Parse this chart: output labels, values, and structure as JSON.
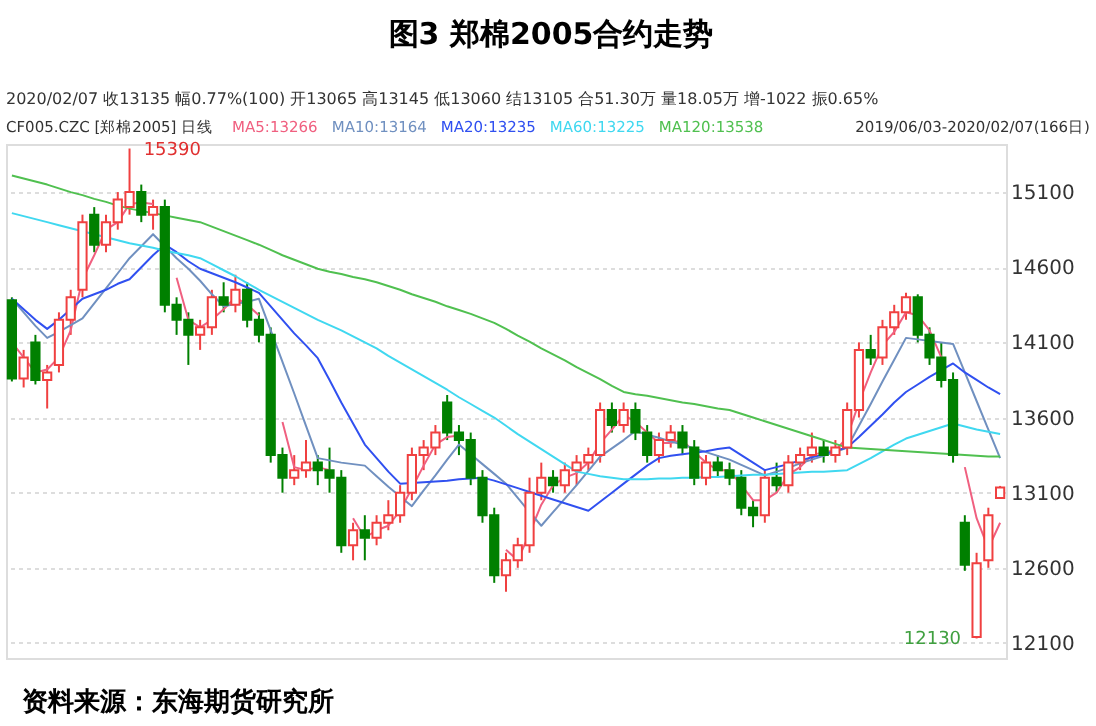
{
  "chart_data": {
    "type": "candlestick",
    "title": "图3  郑棉2005合约走势",
    "categories": [
      null,
      null,
      null,
      null,
      null,
      null,
      null,
      null,
      null,
      null,
      null,
      null,
      null,
      null,
      null,
      null,
      null,
      null,
      null,
      null,
      null,
      null,
      null,
      null,
      null,
      null,
      null,
      null,
      null,
      null,
      null,
      null,
      null,
      null,
      null,
      null,
      null,
      null,
      null,
      null,
      null,
      null,
      null,
      null,
      null,
      null,
      null,
      null,
      null,
      null,
      null,
      null,
      null,
      null,
      null,
      null,
      null,
      null,
      null,
      null,
      null,
      null,
      null,
      null,
      null,
      null,
      null,
      null,
      null,
      null,
      null,
      null,
      null,
      null,
      null,
      null,
      null,
      null,
      null,
      null,
      null,
      null,
      null,
      null,
      null
    ],
    "ohlc": [
      [
        14380,
        14400,
        13840,
        13860
      ],
      [
        13860,
        14050,
        13800,
        14000
      ],
      [
        14100,
        14150,
        13820,
        13850
      ],
      [
        13850,
        13950,
        13660,
        13900
      ],
      [
        13950,
        14300,
        13900,
        14250
      ],
      [
        14250,
        14450,
        14150,
        14400
      ],
      [
        14450,
        14950,
        14400,
        14900
      ],
      [
        14950,
        15000,
        14700,
        14750
      ],
      [
        14750,
        14950,
        14700,
        14900
      ],
      [
        14900,
        15100,
        14850,
        15050
      ],
      [
        15000,
        15390,
        14950,
        15100
      ],
      [
        15100,
        15150,
        14900,
        14950
      ],
      [
        14950,
        15050,
        14850,
        15000
      ],
      [
        15000,
        15050,
        14300,
        14350
      ],
      [
        14350,
        14400,
        14150,
        14250
      ],
      [
        14250,
        14300,
        13950,
        14150
      ],
      [
        14150,
        14250,
        14050,
        14200
      ],
      [
        14200,
        14450,
        14150,
        14400
      ],
      [
        14400,
        14500,
        14300,
        14350
      ],
      [
        14350,
        14550,
        14300,
        14450
      ],
      [
        14450,
        14500,
        14200,
        14250
      ],
      [
        14250,
        14300,
        14100,
        14150
      ],
      [
        14150,
        14200,
        13300,
        13350
      ],
      [
        13350,
        13400,
        13100,
        13200
      ],
      [
        13200,
        13350,
        13150,
        13250
      ],
      [
        13250,
        13450,
        13200,
        13300
      ],
      [
        13300,
        13350,
        13150,
        13250
      ],
      [
        13250,
        13400,
        13100,
        13200
      ],
      [
        13200,
        13250,
        12700,
        12750
      ],
      [
        12750,
        12900,
        12650,
        12850
      ],
      [
        12850,
        12950,
        12650,
        12800
      ],
      [
        12800,
        12950,
        12750,
        12900
      ],
      [
        12900,
        13050,
        12850,
        12950
      ],
      [
        12950,
        13150,
        12900,
        13100
      ],
      [
        13100,
        13400,
        13050,
        13350
      ],
      [
        13350,
        13450,
        13250,
        13400
      ],
      [
        13400,
        13550,
        13350,
        13500
      ],
      [
        13700,
        13750,
        13450,
        13500
      ],
      [
        13500,
        13550,
        13350,
        13450
      ],
      [
        13450,
        13500,
        13150,
        13200
      ],
      [
        13200,
        13250,
        12900,
        12950
      ],
      [
        12950,
        13000,
        12500,
        12550
      ],
      [
        12550,
        12700,
        12440,
        12650
      ],
      [
        12650,
        12800,
        12600,
        12750
      ],
      [
        12750,
        13200,
        12700,
        13100
      ],
      [
        13100,
        13300,
        13050,
        13200
      ],
      [
        13200,
        13250,
        13100,
        13150
      ],
      [
        13150,
        13300,
        13100,
        13250
      ],
      [
        13250,
        13350,
        13150,
        13300
      ],
      [
        13300,
        13400,
        13250,
        13350
      ],
      [
        13350,
        13700,
        13300,
        13650
      ],
      [
        13650,
        13700,
        13500,
        13550
      ],
      [
        13550,
        13700,
        13500,
        13650
      ],
      [
        13650,
        13700,
        13450,
        13500
      ],
      [
        13500,
        13550,
        13300,
        13350
      ],
      [
        13350,
        13500,
        13300,
        13450
      ],
      [
        13450,
        13550,
        13400,
        13500
      ],
      [
        13500,
        13550,
        13350,
        13400
      ],
      [
        13400,
        13450,
        13150,
        13200
      ],
      [
        13200,
        13350,
        13150,
        13300
      ],
      [
        13300,
        13350,
        13200,
        13250
      ],
      [
        13250,
        13300,
        13150,
        13200
      ],
      [
        13200,
        13250,
        12950,
        13000
      ],
      [
        13000,
        13050,
        12870,
        12950
      ],
      [
        12950,
        13250,
        12900,
        13200
      ],
      [
        13200,
        13300,
        13100,
        13150
      ],
      [
        13150,
        13350,
        13100,
        13300
      ],
      [
        13300,
        13400,
        13250,
        13350
      ],
      [
        13350,
        13500,
        13300,
        13400
      ],
      [
        13400,
        13450,
        13300,
        13350
      ],
      [
        13350,
        13450,
        13300,
        13400
      ],
      [
        13400,
        13700,
        13350,
        13650
      ],
      [
        13650,
        14100,
        13600,
        14050
      ],
      [
        14050,
        14150,
        13950,
        14000
      ],
      [
        14000,
        14250,
        13950,
        14200
      ],
      [
        14200,
        14350,
        14150,
        14300
      ],
      [
        14300,
        14430,
        14250,
        14400
      ],
      [
        14400,
        14420,
        14100,
        14150
      ],
      [
        14150,
        14200,
        13950,
        14000
      ],
      [
        14000,
        14100,
        13800,
        13850
      ],
      [
        13850,
        13900,
        13300,
        13350
      ],
      [
        12900,
        12950,
        12580,
        12620
      ],
      [
        12140,
        12700,
        12130,
        12630
      ],
      [
        12650,
        13000,
        12600,
        12950
      ],
      [
        13065,
        13145,
        13060,
        13135
      ]
    ],
    "colors": [
      "#008000",
      "#f04040",
      "#008000",
      "#f04040",
      "#f04040",
      "#f04040",
      "#f04040",
      "#008000",
      "#f04040",
      "#f04040",
      "#f04040",
      "#008000",
      "#f04040",
      "#008000",
      "#008000",
      "#008000",
      "#f04040",
      "#f04040",
      "#008000",
      "#f04040",
      "#008000",
      "#008000",
      "#008000",
      "#008000",
      "#f04040",
      "#f04040",
      "#008000",
      "#008000",
      "#008000",
      "#f04040",
      "#008000",
      "#f04040",
      "#f04040",
      "#f04040",
      "#f04040",
      "#f04040",
      "#f04040",
      "#008000",
      "#008000",
      "#008000",
      "#008000",
      "#008000",
      "#f04040",
      "#f04040",
      "#f04040",
      "#f04040",
      "#008000",
      "#f04040",
      "#f04040",
      "#f04040",
      "#f04040",
      "#008000",
      "#f04040",
      "#008000",
      "#008000",
      "#f04040",
      "#f04040",
      "#008000",
      "#008000",
      "#f04040",
      "#008000",
      "#008000",
      "#008000",
      "#008000",
      "#f04040",
      "#008000",
      "#f04040",
      "#f04040",
      "#f04040",
      "#008000",
      "#f04040",
      "#f04040",
      "#f04040",
      "#008000",
      "#f04040",
      "#f04040",
      "#f04040",
      "#008000",
      "#008000",
      "#008000",
      "#008000",
      "#008000",
      "#f04040",
      "#f04040",
      "#f04040"
    ],
    "series": [
      {
        "name": "MA5:13266",
        "type": "line",
        "color": "#f06080",
        "values": [
          14100,
          14000,
          13900,
          13920,
          14000,
          14180,
          14520,
          14680,
          14850,
          14900,
          15020,
          15030,
          15020,
          null,
          14530,
          14250,
          14200,
          14250,
          14320,
          14400,
          14350,
          14280,
          null,
          13570,
          13270,
          13250,
          13270,
          13250,
          null,
          12930,
          12800,
          12850,
          12880,
          12980,
          13130,
          13280,
          13420,
          13470,
          13480,
          null,
          null,
          null,
          12720,
          12650,
          12830,
          13020,
          13150,
          13200,
          13230,
          13300,
          13430,
          13520,
          13620,
          13570,
          13500,
          13430,
          13430,
          13450,
          13370,
          13300,
          13250,
          13250,
          13150,
          13050,
          13050,
          13100,
          13220,
          13270,
          13350,
          13370,
          13380,
          13470,
          13700,
          13900,
          14080,
          14170,
          14300,
          14280,
          14180,
          14000,
          null,
          13270,
          12930,
          12730,
          12900
        ]
      },
      {
        "name": "MA10:13164",
        "type": "line",
        "color": "#7090c0",
        "values": [
          14390,
          14300,
          14210,
          14130,
          14170,
          14215,
          14260,
          14360,
          14460,
          14560,
          14660,
          14740,
          14820,
          14740,
          14660,
          14590,
          14510,
          14420,
          14340,
          14355,
          14370,
          14390,
          14180,
          13970,
          13760,
          13545,
          13330,
          13315,
          13300,
          13290,
          13280,
          13210,
          13140,
          13075,
          13010,
          13115,
          13215,
          13320,
          13420,
          13355,
          13290,
          13225,
          13160,
          13065,
          12970,
          12880,
          12970,
          13060,
          13150,
          13245,
          13340,
          13395,
          13450,
          13510,
          13485,
          13465,
          13440,
          13420,
          13395,
          13370,
          13345,
          13320,
          13285,
          13250,
          13215,
          13240,
          13265,
          13295,
          13320,
          13345,
          13370,
          13400,
          13545,
          13690,
          13840,
          13985,
          14130,
          14120,
          14110,
          14100,
          14090,
          13900,
          13710,
          13520,
          13330
        ]
      },
      {
        "name": "MA20:13235",
        "type": "line",
        "color": "#3050f0",
        "values": [
          14390,
          14320,
          14250,
          14190,
          14250,
          14320,
          14390,
          14420,
          14450,
          14490,
          14520,
          14600,
          14680,
          14750,
          14700,
          14640,
          14590,
          14560,
          14530,
          14500,
          14465,
          14430,
          14340,
          14250,
          14160,
          14080,
          13995,
          13850,
          13700,
          13560,
          13420,
          13330,
          13240,
          13160,
          13165,
          13170,
          13175,
          13180,
          13190,
          13195,
          13200,
          13180,
          13155,
          13130,
          13105,
          13080,
          13055,
          13030,
          13005,
          12980,
          13040,
          13100,
          13160,
          13220,
          13280,
          13330,
          13345,
          13355,
          13365,
          13375,
          13390,
          13400,
          13350,
          13300,
          13250,
          13270,
          13290,
          13315,
          13335,
          13355,
          13380,
          13400,
          13470,
          13545,
          13620,
          13700,
          13770,
          13820,
          13870,
          13915,
          13960,
          13900,
          13850,
          13800,
          13755
        ]
      },
      {
        "name": "MA60:13225",
        "type": "line",
        "color": "#40d8f0",
        "values": [
          14960,
          14940,
          14920,
          14900,
          14880,
          14860,
          14840,
          14820,
          14800,
          14780,
          14760,
          14745,
          14730,
          14710,
          14695,
          14680,
          14660,
          14620,
          14580,
          14540,
          14495,
          14450,
          14410,
          14370,
          14330,
          14290,
          14250,
          14215,
          14180,
          14140,
          14100,
          14060,
          14010,
          13965,
          13920,
          13875,
          13830,
          13785,
          13735,
          13690,
          13645,
          13600,
          13545,
          13490,
          13440,
          13390,
          13340,
          13290,
          13240,
          13225,
          13210,
          13200,
          13190,
          13190,
          13190,
          13195,
          13195,
          13200,
          13200,
          13205,
          13205,
          13210,
          13215,
          13220,
          13220,
          13225,
          13230,
          13235,
          13240,
          13240,
          13245,
          13250,
          13290,
          13330,
          13375,
          13420,
          13460,
          13485,
          13510,
          13535,
          13560,
          13540,
          13520,
          13505,
          13490
        ]
      },
      {
        "name": "MA120:13538",
        "type": "line",
        "color": "#50c050",
        "values": [
          15210,
          15190,
          15170,
          15150,
          15125,
          15100,
          15080,
          15055,
          15035,
          15010,
          14990,
          14975,
          14960,
          14945,
          14930,
          14915,
          14900,
          14870,
          14840,
          14810,
          14780,
          14750,
          14715,
          14680,
          14650,
          14620,
          14590,
          14570,
          14555,
          14535,
          14520,
          14500,
          14475,
          14450,
          14420,
          14395,
          14370,
          14340,
          14315,
          14290,
          14260,
          14230,
          14190,
          14145,
          14105,
          14060,
          14020,
          13980,
          13935,
          13895,
          13855,
          13810,
          13770,
          13755,
          13745,
          13730,
          13715,
          13700,
          13690,
          13675,
          13660,
          13650,
          13625,
          13600,
          13575,
          13550,
          13525,
          13500,
          13475,
          13450,
          13425,
          13400,
          13395,
          13390,
          13385,
          13380,
          13375,
          13370,
          13365,
          13360,
          13355,
          13350,
          13345,
          13340,
          13340
        ]
      }
    ],
    "ylim": [
      12000,
      15420
    ],
    "yticks": [
      12100,
      12600,
      13100,
      13600,
      14100,
      14600,
      15100
    ],
    "grid": "y",
    "tick_labels": "y",
    "annotations": [
      "2020/02/07 收13135 幅0.77%(100) 开13065 高13145 低13060 结13105 合51.30万 量18.05万 增-1022 振0.65%",
      "CF005.CZC [郑棉2005] 日线",
      "2019/06/03-2020/02/07(166日)",
      "15390",
      "12130",
      "资料来源：东海期货研究所"
    ]
  }
}
